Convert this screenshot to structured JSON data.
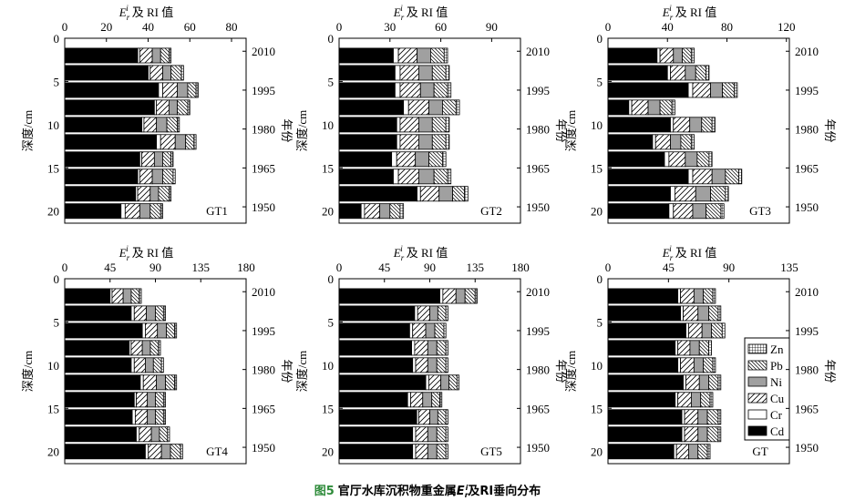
{
  "chart_data": [
    {
      "type": "bar",
      "orientation": "horizontal",
      "label": "GT1",
      "xlabel": {
        "main": "E",
        "sub": "r",
        "sup": "i",
        "rest": "及 RI 值"
      },
      "ylabel": "深度/cm",
      "y2label": "年份",
      "y": [
        2,
        4,
        6,
        8,
        10,
        12,
        14,
        16,
        18,
        20
      ],
      "series": [
        {
          "fill": "#000000",
          "values": [
            35,
            40,
            45,
            43,
            37,
            44,
            36,
            35,
            34,
            27
          ]
        },
        {
          "fill": "#ffffff",
          "values": [
            1,
            1,
            2,
            1,
            1,
            2,
            1,
            1,
            1,
            2
          ]
        },
        {
          "fill": "hatch",
          "values": [
            6,
            6,
            7,
            6,
            6,
            7,
            6,
            6,
            6,
            7
          ]
        },
        {
          "fill": "#a0a0a0",
          "values": [
            4,
            4,
            5,
            4,
            5,
            5,
            4,
            5,
            4,
            5
          ]
        },
        {
          "fill": "backhatch",
          "values": [
            4,
            5,
            4,
            5,
            5,
            4,
            4,
            5,
            5,
            5
          ]
        },
        {
          "fill": "grid",
          "values": [
            1,
            1,
            1,
            1,
            1,
            1,
            1,
            1,
            1,
            1
          ]
        }
      ],
      "xlim": [
        0,
        87
      ],
      "xticks": [
        0,
        20,
        40,
        60,
        80
      ],
      "ylim": [
        0,
        21.4
      ],
      "yticks": [
        0,
        5,
        10,
        15,
        20
      ],
      "y2lim": [
        2015,
        1943.7
      ],
      "y2ticks": [
        2010,
        1995,
        1980,
        1965,
        1950
      ],
      "legend": false
    },
    {
      "type": "bar",
      "orientation": "horizontal",
      "label": "GT2",
      "xlabel": {
        "main": "E",
        "sub": "r",
        "sup": "i",
        "rest": "及 RI 值"
      },
      "ylabel": "深度/cm",
      "y2label": "年份",
      "y": [
        2,
        4,
        6,
        8,
        10,
        12,
        14,
        16,
        18,
        20
      ],
      "series": [
        {
          "fill": "#000000",
          "values": [
            32,
            33,
            33,
            38,
            34,
            34,
            31,
            32,
            46,
            13
          ]
        },
        {
          "fill": "#ffffff",
          "values": [
            3,
            3,
            3,
            3,
            2,
            2,
            3,
            3,
            2,
            2
          ]
        },
        {
          "fill": "hatch",
          "values": [
            11,
            11,
            12,
            12,
            11,
            11,
            11,
            12,
            11,
            9
          ]
        },
        {
          "fill": "#a0a0a0",
          "values": [
            8,
            8,
            8,
            8,
            8,
            8,
            8,
            9,
            8,
            6
          ]
        },
        {
          "fill": "backhatch",
          "values": [
            8,
            8,
            8,
            8,
            8,
            8,
            8,
            8,
            7,
            6
          ]
        },
        {
          "fill": "grid",
          "values": [
            2,
            2,
            2,
            2,
            2,
            2,
            2,
            2,
            2,
            2
          ]
        }
      ],
      "xlim": [
        0,
        107
      ],
      "xticks": [
        0,
        30,
        60,
        90
      ],
      "ylim": [
        0,
        21.4
      ],
      "yticks": [
        0,
        5,
        10,
        15,
        20
      ],
      "y2lim": [
        2015,
        1943.7
      ],
      "y2ticks": [
        2010,
        1995,
        1980,
        1965,
        1950
      ],
      "legend": false
    },
    {
      "type": "bar",
      "orientation": "horizontal",
      "label": "GT3",
      "xlabel": {
        "main": "E",
        "sub": "r",
        "sup": "i",
        "rest": "及 RI 值"
      },
      "ylabel": "深度/cm",
      "y2label": "年份",
      "y": [
        2,
        4,
        6,
        8,
        10,
        12,
        14,
        16,
        18,
        20
      ],
      "series": [
        {
          "fill": "#000000",
          "values": [
            33,
            40,
            54,
            14,
            42,
            30,
            38,
            54,
            42,
            41
          ]
        },
        {
          "fill": "#ffffff",
          "values": [
            2,
            2,
            3,
            2,
            2,
            2,
            3,
            3,
            3,
            3
          ]
        },
        {
          "fill": "hatch",
          "values": [
            9,
            10,
            12,
            11,
            11,
            10,
            11,
            13,
            14,
            13
          ]
        },
        {
          "fill": "#a0a0a0",
          "values": [
            6,
            7,
            8,
            8,
            8,
            7,
            8,
            9,
            10,
            9
          ]
        },
        {
          "fill": "backhatch",
          "values": [
            6,
            7,
            8,
            8,
            7,
            7,
            8,
            9,
            10,
            10
          ]
        },
        {
          "fill": "grid",
          "values": [
            2,
            2,
            2,
            2,
            2,
            2,
            2,
            2,
            2,
            2
          ]
        }
      ],
      "xlim": [
        0,
        122
      ],
      "xticks": [
        0,
        40,
        80,
        120
      ],
      "ylim": [
        0,
        21.4
      ],
      "yticks": [
        0,
        5,
        10,
        15,
        20
      ],
      "y2lim": [
        2015,
        1943.7
      ],
      "y2ticks": [
        2010,
        1995,
        1980,
        1965,
        1950
      ],
      "legend": false
    },
    {
      "type": "bar",
      "orientation": "horizontal",
      "label": "GT4",
      "xlabel": {
        "main": "E",
        "sub": "r",
        "sup": "i",
        "rest": "及 RI 值"
      },
      "ylabel": "深度/cm",
      "y2label": "年份",
      "y": [
        2,
        4,
        6,
        8,
        10,
        12,
        14,
        16,
        18,
        20
      ],
      "series": [
        {
          "fill": "#000000",
          "values": [
            45,
            66,
            77,
            64,
            66,
            75,
            69,
            67,
            71,
            80
          ]
        },
        {
          "fill": "#ffffff",
          "values": [
            2,
            3,
            3,
            2,
            3,
            3,
            2,
            3,
            3,
            3
          ]
        },
        {
          "fill": "hatch",
          "values": [
            11,
            12,
            12,
            11,
            11,
            13,
            11,
            12,
            12,
            13
          ]
        },
        {
          "fill": "#a0a0a0",
          "values": [
            8,
            9,
            9,
            8,
            8,
            9,
            8,
            8,
            8,
            9
          ]
        },
        {
          "fill": "backhatch",
          "values": [
            8,
            8,
            8,
            8,
            8,
            9,
            8,
            8,
            8,
            10
          ]
        },
        {
          "fill": "grid",
          "values": [
            2,
            2,
            2,
            2,
            2,
            2,
            2,
            2,
            2,
            2
          ]
        }
      ],
      "xlim": [
        0,
        180
      ],
      "xticks": [
        0,
        45,
        90,
        135,
        180
      ],
      "ylim": [
        0,
        21.4
      ],
      "yticks": [
        0,
        5,
        10,
        15,
        20
      ],
      "y2lim": [
        2015,
        1943.7
      ],
      "y2ticks": [
        2010,
        1995,
        1980,
        1965,
        1950
      ],
      "legend": false
    },
    {
      "type": "bar",
      "orientation": "horizontal",
      "label": "GT5",
      "xlabel": {
        "main": "E",
        "sub": "r",
        "sup": "i",
        "rest": "及 RI 值"
      },
      "ylabel": "深度/cm",
      "y2label": "年份",
      "y": [
        2,
        4,
        6,
        8,
        10,
        12,
        14,
        16,
        18,
        20
      ],
      "series": [
        {
          "fill": "#000000",
          "values": [
            100,
            75,
            70,
            72,
            73,
            86,
            68,
            77,
            73,
            73
          ]
        },
        {
          "fill": "#ffffff",
          "values": [
            3,
            3,
            3,
            3,
            3,
            3,
            3,
            2,
            3,
            3
          ]
        },
        {
          "fill": "hatch",
          "values": [
            13,
            12,
            13,
            13,
            12,
            12,
            12,
            11,
            12,
            12
          ]
        },
        {
          "fill": "#a0a0a0",
          "values": [
            9,
            8,
            9,
            9,
            9,
            8,
            9,
            8,
            9,
            9
          ]
        },
        {
          "fill": "backhatch",
          "values": [
            10,
            8,
            9,
            9,
            9,
            8,
            8,
            8,
            9,
            9
          ]
        },
        {
          "fill": "grid",
          "values": [
            2,
            2,
            2,
            2,
            2,
            2,
            2,
            2,
            2,
            2
          ]
        }
      ],
      "xlim": [
        0,
        180
      ],
      "xticks": [
        0,
        45,
        90,
        135,
        180
      ],
      "ylim": [
        0,
        21.4
      ],
      "yticks": [
        0,
        5,
        10,
        15,
        20
      ],
      "y2lim": [
        2015,
        1943.7
      ],
      "y2ticks": [
        2010,
        1995,
        1980,
        1965,
        1950
      ],
      "legend": false
    },
    {
      "type": "bar",
      "orientation": "horizontal",
      "label": "GT",
      "xlabel": {
        "main": "E",
        "sub": "r",
        "sup": "i",
        "rest": "及 RI 值"
      },
      "ylabel": "深度/cm",
      "y2label": "年份",
      "y": [
        2,
        4,
        6,
        8,
        10,
        12,
        14,
        16,
        18,
        20
      ],
      "series": [
        {
          "name": "Cd",
          "fill": "#000000",
          "values": [
            52,
            54,
            58,
            50,
            52,
            56,
            50,
            55,
            55,
            49
          ]
        },
        {
          "name": "Cr",
          "fill": "#ffffff",
          "values": [
            2,
            2,
            2,
            2,
            2,
            2,
            2,
            2,
            2,
            2
          ]
        },
        {
          "name": "Cu",
          "fill": "hatch",
          "values": [
            10,
            11,
            10,
            9,
            10,
            10,
            10,
            10,
            10,
            9
          ]
        },
        {
          "name": "Ni",
          "fill": "#a0a0a0",
          "values": [
            7,
            8,
            7,
            7,
            7,
            7,
            7,
            7,
            7,
            7
          ]
        },
        {
          "name": "Pb",
          "fill": "backhatch",
          "values": [
            7,
            7,
            8,
            7,
            7,
            7,
            7,
            8,
            8,
            7
          ]
        },
        {
          "name": "Zn",
          "fill": "grid",
          "values": [
            2,
            2,
            2,
            2,
            2,
            2,
            2,
            2,
            2,
            2
          ]
        }
      ],
      "xlim": [
        0,
        135
      ],
      "xticks": [
        0,
        45,
        90,
        135
      ],
      "ylim": [
        0,
        21.4
      ],
      "yticks": [
        0,
        5,
        10,
        15,
        20
      ],
      "y2lim": [
        2015,
        1943.7
      ],
      "y2ticks": [
        2010,
        1995,
        1980,
        1965,
        1950
      ],
      "legend": "lower right"
    }
  ],
  "caption": {
    "number": "图5",
    "text": "官厅水库沉积物重金属",
    "main": "E",
    "sub": "r",
    "sup": "i",
    "rest": "及RI垂向分布"
  }
}
